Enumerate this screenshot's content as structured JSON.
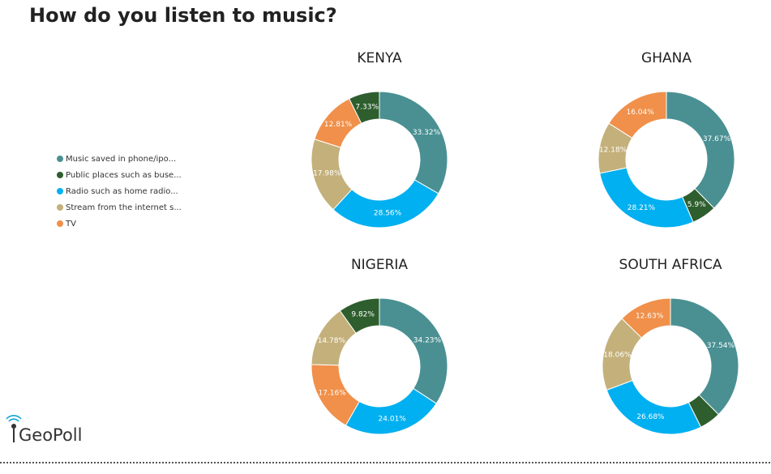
{
  "title": "How do you listen to music?",
  "logo": "GeoPoll",
  "legend": {
    "labels": [
      "Music saved in phone/ipo...",
      "Public places such as buse...",
      "Radio such as home radio...",
      "Stream from the internet s...",
      "TV"
    ],
    "colors": [
      "#4a9093",
      "#2e5e2e",
      "#00b0f0",
      "#c4b07a",
      "#f0904a"
    ]
  },
  "chart_data": [
    {
      "type": "pie",
      "title": "KENYA",
      "values": [
        33.32,
        28.56,
        17.98,
        12.81,
        7.33
      ],
      "value_labels": [
        "33.32%",
        "28.56%",
        "17.98%",
        "12.81%",
        "7.33%"
      ],
      "colors": [
        "#4a9093",
        "#00b0f0",
        "#c4b07a",
        "#f0904a",
        "#2e5e2e"
      ]
    },
    {
      "type": "pie",
      "title": "GHANA",
      "values": [
        37.67,
        5.9,
        28.21,
        12.18,
        16.04
      ],
      "value_labels": [
        "37.67%",
        "5.9%",
        "28.21%",
        "12.18%",
        "16.04%"
      ],
      "colors": [
        "#4a9093",
        "#2e5e2e",
        "#00b0f0",
        "#c4b07a",
        "#f0904a"
      ]
    },
    {
      "type": "pie",
      "title": "NIGERIA",
      "values": [
        34.23,
        24.01,
        17.16,
        14.78,
        9.82
      ],
      "value_labels": [
        "34.23%",
        "24.01%",
        "17.16%",
        "14.78%",
        "9.82%"
      ],
      "colors": [
        "#4a9093",
        "#00b0f0",
        "#f0904a",
        "#c4b07a",
        "#2e5e2e"
      ]
    },
    {
      "type": "pie",
      "title": "SOUTH AFRICA",
      "values": [
        37.54,
        5.09,
        26.68,
        18.06,
        12.63
      ],
      "value_labels": [
        "37.54%",
        null,
        "26.68%",
        "18.06%",
        "12.63%"
      ],
      "colors": [
        "#4a9093",
        "#2e5e2e",
        "#00b0f0",
        "#c4b07a",
        "#f0904a"
      ]
    }
  ]
}
